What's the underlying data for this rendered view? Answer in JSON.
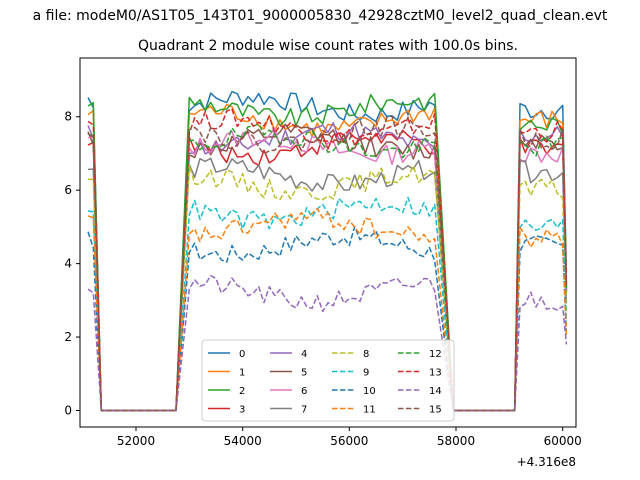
{
  "chart_data": {
    "type": "line",
    "suptitle": "a file: modeM0/AS1T05_143T01_9000005830_42928cztM0_level2_quad_clean.evt",
    "title": "Quadrant 2 module wise count rates with 100.0s bins.",
    "xlabel": "",
    "ylabel": "",
    "x_offset_label": "+4.316e8",
    "xlim": [
      50950,
      60250
    ],
    "ylim": [
      -0.45,
      9.6
    ],
    "xticks": [
      52000,
      54000,
      56000,
      58000,
      60000
    ],
    "xtick_labels": [
      "52000",
      "54000",
      "56000",
      "58000",
      "60000"
    ],
    "yticks": [
      0,
      2,
      4,
      6,
      8
    ],
    "ytick_labels": [
      "0",
      "2",
      "4",
      "6",
      "8"
    ],
    "grid": false,
    "legend": {
      "placement": "lower-center",
      "columns": 4
    },
    "segments": [
      {
        "start": 51100,
        "end": 51200,
        "to_zero": 51350
      },
      {
        "from_zero": 52750,
        "start": 53000,
        "end": 57600,
        "to_zero": 57950
      },
      {
        "from_zero": 59100,
        "start": 59200,
        "end": 60050
      }
    ],
    "x_step": 100,
    "series": [
      {
        "name": "0",
        "color": "#1f77b4",
        "dash": "solid",
        "level": 8.3,
        "seg3": 8.2
      },
      {
        "name": "1",
        "color": "#ff7f0e",
        "dash": "solid",
        "level": 7.9,
        "seg3": 7.9
      },
      {
        "name": "2",
        "color": "#2ca02c",
        "dash": "solid",
        "level": 8.2,
        "seg3": 7.8
      },
      {
        "name": "3",
        "color": "#d62728",
        "dash": "solid",
        "level": 7.2,
        "seg3": 7.1
      },
      {
        "name": "4",
        "color": "#9467bd",
        "dash": "solid",
        "level": 7.4,
        "seg3": 7.5
      },
      {
        "name": "5",
        "color": "#8c564b",
        "dash": "solid",
        "level": 7.3,
        "seg3": 7.4
      },
      {
        "name": "6",
        "color": "#e377c2",
        "dash": "solid",
        "level": 7.2,
        "seg3": 7.0
      },
      {
        "name": "7",
        "color": "#7f7f7f",
        "dash": "solid",
        "level": 6.4,
        "seg3": 6.5
      },
      {
        "name": "8",
        "color": "#bcbd22",
        "dash": "dashed",
        "level": 6.2,
        "seg3": 6.0
      },
      {
        "name": "9",
        "color": "#17becf",
        "dash": "dashed",
        "level": 5.4,
        "seg3": 5.0
      },
      {
        "name": "10",
        "color": "#1f77b4",
        "dash": "dashed",
        "level": 4.5,
        "seg3": 4.5
      },
      {
        "name": "11",
        "color": "#ff7f0e",
        "dash": "dashed",
        "level": 5.0,
        "seg3": 4.7
      },
      {
        "name": "12",
        "color": "#2ca02c",
        "dash": "dashed",
        "level": 7.3,
        "seg3": 7.2
      },
      {
        "name": "13",
        "color": "#d62728",
        "dash": "dashed",
        "level": 7.7,
        "seg3": 7.6
      },
      {
        "name": "14",
        "color": "#9467bd",
        "dash": "dashed",
        "level": 3.2,
        "seg3": 3.0
      },
      {
        "name": "15",
        "color": "#8c564b",
        "dash": "dashed",
        "level": 7.5,
        "seg3": 7.4
      }
    ]
  }
}
